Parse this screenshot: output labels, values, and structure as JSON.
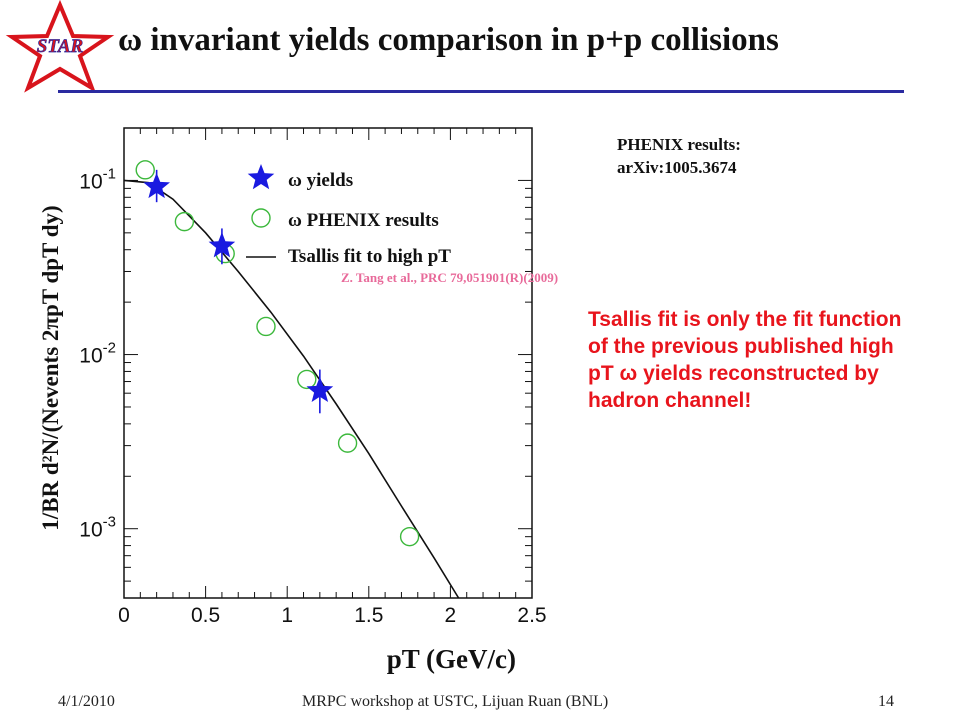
{
  "slide": {
    "logo_text": "STAR",
    "title": "ω invariant yields comparison in p+p collisions",
    "footer": {
      "date": "4/1/2010",
      "center": "MRPC workshop at USTC, Lijuan Ruan (BNL)",
      "page": "14"
    }
  },
  "notes": {
    "phenix_line1": "PHENIX results:",
    "phenix_line2": "arXiv:1005.3674",
    "reference": "Z. Tang et al., PRC 79,051901(R)(2009)",
    "fit_note": "Tsallis fit is only the fit function of the previous published high pT  ω yields reconstructed by hadron channel!"
  },
  "colors": {
    "star_marker": "#1a1ae0",
    "phenix_marker": "#3cb83c",
    "fit_line": "#111111",
    "note_red": "#e8141c",
    "ref_pink": "#e86a9a",
    "title_rule": "#2a2aa0",
    "logo_red": "#d8141c"
  },
  "chart_data": {
    "type": "scatter",
    "xlabel": "pT (GeV/c)",
    "ylabel": "1/BR d²N/(Nevents 2πpT dpT dy)",
    "xlim": [
      0,
      2.5
    ],
    "ylim": [
      0.0004,
      0.2
    ],
    "y_scale": "log",
    "x_ticks": [
      "0",
      "0.5",
      "1",
      "1.5",
      "2",
      "2.5"
    ],
    "y_ticks": [
      {
        "base": "10",
        "exp": "-1"
      },
      {
        "base": "10",
        "exp": "-2"
      },
      {
        "base": "10",
        "exp": "-3"
      }
    ],
    "legend_position": "top-right",
    "series": [
      {
        "name": "ω yields",
        "marker": "star",
        "points": [
          {
            "x": 0.2,
            "y": 0.092,
            "yerr": [
              0.075,
              0.115
            ]
          },
          {
            "x": 0.6,
            "y": 0.042,
            "yerr": [
              0.033,
              0.053
            ]
          },
          {
            "x": 1.2,
            "y": 0.0062,
            "yerr": [
              0.0046,
              0.0082
            ]
          }
        ]
      },
      {
        "name": "ω PHENIX results",
        "marker": "open-circle",
        "points": [
          {
            "x": 0.13,
            "y": 0.115
          },
          {
            "x": 0.37,
            "y": 0.058
          },
          {
            "x": 0.62,
            "y": 0.038
          },
          {
            "x": 0.87,
            "y": 0.0145
          },
          {
            "x": 1.12,
            "y": 0.0072
          },
          {
            "x": 1.37,
            "y": 0.0031
          },
          {
            "x": 1.75,
            "y": 0.0009
          }
        ]
      },
      {
        "name": "Tsallis fit to high pT",
        "marker": "line",
        "points": [
          {
            "x": 0.0,
            "y": 0.1
          },
          {
            "x": 0.15,
            "y": 0.097
          },
          {
            "x": 0.3,
            "y": 0.078
          },
          {
            "x": 0.5,
            "y": 0.05
          },
          {
            "x": 0.7,
            "y": 0.03
          },
          {
            "x": 0.9,
            "y": 0.0175
          },
          {
            "x": 1.1,
            "y": 0.0098
          },
          {
            "x": 1.3,
            "y": 0.0052
          },
          {
            "x": 1.5,
            "y": 0.0027
          },
          {
            "x": 1.7,
            "y": 0.00135
          },
          {
            "x": 1.9,
            "y": 0.00068
          },
          {
            "x": 2.05,
            "y": 0.0004
          }
        ]
      }
    ]
  }
}
